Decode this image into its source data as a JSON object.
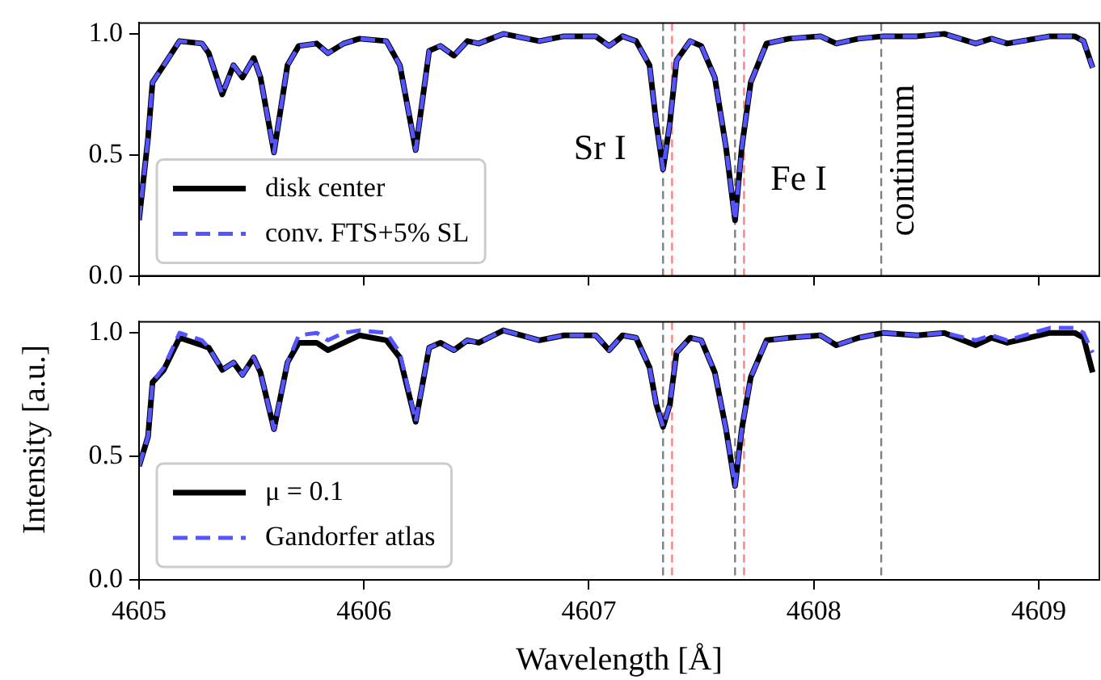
{
  "chart_data": [
    {
      "type": "line",
      "ylabel": "Intensity [a.u.]",
      "tick_labels": "y",
      "legend": "bottom left",
      "x": [
        4605.0,
        4605.04,
        4605.06,
        4605.11,
        4605.18,
        4605.28,
        4605.31,
        4605.37,
        4605.42,
        4605.46,
        4605.51,
        4605.54,
        4605.6,
        4605.66,
        4605.71,
        4605.79,
        4605.84,
        4605.91,
        4605.98,
        4606.1,
        4606.16,
        4606.23,
        4606.29,
        4606.34,
        4606.4,
        4606.46,
        4606.51,
        4606.62,
        4606.78,
        4606.89,
        4607.03,
        4607.09,
        4607.15,
        4607.21,
        4607.27,
        4607.3,
        4607.33,
        4607.36,
        4607.39,
        4607.45,
        4607.5,
        4607.56,
        4607.61,
        4607.65,
        4607.68,
        4607.72,
        4607.79,
        4607.89,
        4608.03,
        4608.1,
        4608.2,
        4608.31,
        4608.46,
        4608.58,
        4608.72,
        4608.79,
        4608.86,
        4609.05,
        4609.16,
        4609.2,
        4609.24
      ],
      "series": [
        {
          "name": "disk center",
          "color": "#000000",
          "line_style": "solid",
          "values": [
            0.23,
            0.57,
            0.8,
            0.87,
            0.97,
            0.96,
            0.92,
            0.75,
            0.87,
            0.82,
            0.9,
            0.82,
            0.51,
            0.87,
            0.95,
            0.96,
            0.92,
            0.96,
            0.98,
            0.97,
            0.87,
            0.52,
            0.93,
            0.95,
            0.91,
            0.97,
            0.96,
            1.0,
            0.97,
            0.99,
            0.99,
            0.95,
            0.99,
            0.97,
            0.87,
            0.63,
            0.44,
            0.63,
            0.89,
            0.97,
            0.95,
            0.82,
            0.53,
            0.23,
            0.53,
            0.8,
            0.96,
            0.98,
            0.99,
            0.96,
            0.98,
            0.99,
            0.99,
            1.0,
            0.96,
            0.98,
            0.96,
            0.99,
            0.99,
            0.97,
            0.86
          ]
        },
        {
          "name": "conv. FTS+5% SL",
          "color": "#5555ff",
          "line_style": "dashed",
          "values": [
            0.23,
            0.57,
            0.8,
            0.87,
            0.97,
            0.96,
            0.92,
            0.75,
            0.87,
            0.82,
            0.9,
            0.82,
            0.51,
            0.87,
            0.95,
            0.96,
            0.92,
            0.96,
            0.98,
            0.97,
            0.87,
            0.52,
            0.93,
            0.95,
            0.91,
            0.97,
            0.96,
            1.0,
            0.97,
            0.99,
            0.99,
            0.95,
            0.99,
            0.97,
            0.87,
            0.63,
            0.44,
            0.63,
            0.89,
            0.97,
            0.95,
            0.82,
            0.53,
            0.23,
            0.53,
            0.8,
            0.96,
            0.98,
            0.99,
            0.96,
            0.98,
            0.99,
            0.99,
            1.0,
            0.96,
            0.98,
            0.96,
            0.99,
            0.99,
            0.97,
            0.86
          ]
        }
      ],
      "xlim": [
        4605,
        4609.27
      ],
      "xticks": [
        4605,
        4606,
        4607,
        4608,
        4609
      ],
      "ylim": [
        0,
        1.045
      ],
      "yticks": [
        {
          "value": 0,
          "label": "0.0"
        },
        {
          "value": 0.5,
          "label": "0.5"
        },
        {
          "value": 1,
          "label": "1.0"
        }
      ],
      "ref_lines": [
        {
          "axis": "x",
          "value": 4607.33,
          "color": "#808080",
          "line_style": "dashed"
        },
        {
          "axis": "x",
          "value": 4607.37,
          "color": "#ff8080",
          "line_style": "dashed"
        },
        {
          "axis": "x",
          "value": 4607.65,
          "color": "#808080",
          "line_style": "dashed"
        },
        {
          "axis": "x",
          "value": 4607.69,
          "color": "#ff8080",
          "line_style": "dashed"
        },
        {
          "axis": "x",
          "value": 4608.3,
          "color": "#808080",
          "line_style": "dashed",
          "label": "continuum"
        }
      ],
      "annotations": [
        "Sr I",
        "Fe I"
      ]
    },
    {
      "type": "line",
      "xlabel": "Wavelength [Å]",
      "legend": "bottom left",
      "x": [
        4605.0,
        4605.04,
        4605.06,
        4605.11,
        4605.18,
        4605.28,
        4605.31,
        4605.37,
        4605.42,
        4605.46,
        4605.51,
        4605.54,
        4605.6,
        4605.66,
        4605.71,
        4605.79,
        4605.84,
        4605.91,
        4605.98,
        4606.1,
        4606.16,
        4606.23,
        4606.29,
        4606.34,
        4606.4,
        4606.46,
        4606.51,
        4606.62,
        4606.78,
        4606.89,
        4607.03,
        4607.09,
        4607.15,
        4607.21,
        4607.27,
        4607.3,
        4607.33,
        4607.36,
        4607.39,
        4607.45,
        4607.5,
        4607.56,
        4607.61,
        4607.65,
        4607.68,
        4607.72,
        4607.79,
        4607.89,
        4608.03,
        4608.1,
        4608.2,
        4608.31,
        4608.46,
        4608.58,
        4608.72,
        4608.79,
        4608.86,
        4609.05,
        4609.16,
        4609.2,
        4609.24
      ],
      "series": [
        {
          "name": "μ = 0.1",
          "color": "#000000",
          "line_style": "solid",
          "values": [
            0.46,
            0.58,
            0.8,
            0.85,
            0.98,
            0.95,
            0.94,
            0.85,
            0.88,
            0.83,
            0.9,
            0.84,
            0.61,
            0.88,
            0.96,
            0.96,
            0.93,
            0.96,
            0.99,
            0.97,
            0.9,
            0.64,
            0.94,
            0.96,
            0.93,
            0.97,
            0.96,
            1.01,
            0.97,
            0.99,
            0.99,
            0.93,
            0.99,
            0.98,
            0.86,
            0.71,
            0.62,
            0.71,
            0.92,
            0.98,
            0.97,
            0.84,
            0.61,
            0.38,
            0.61,
            0.82,
            0.97,
            0.98,
            0.99,
            0.95,
            0.98,
            1.0,
            0.99,
            1.0,
            0.95,
            0.98,
            0.96,
            1.0,
            1.0,
            0.98,
            0.84
          ]
        },
        {
          "name": "Gandorfer atlas",
          "color": "#5555ff",
          "line_style": "dashed",
          "values": [
            0.46,
            0.58,
            0.8,
            0.86,
            1.0,
            0.97,
            0.94,
            0.85,
            0.88,
            0.83,
            0.9,
            0.84,
            0.61,
            0.88,
            0.99,
            1.0,
            0.97,
            1.0,
            1.01,
            1.0,
            0.92,
            0.64,
            0.94,
            0.96,
            0.93,
            0.97,
            0.96,
            1.01,
            0.97,
            0.99,
            0.99,
            0.93,
            0.99,
            0.98,
            0.86,
            0.71,
            0.62,
            0.71,
            0.92,
            0.98,
            0.97,
            0.84,
            0.61,
            0.38,
            0.61,
            0.82,
            0.97,
            0.98,
            0.99,
            0.95,
            0.98,
            1.0,
            0.99,
            1.0,
            0.97,
            0.99,
            0.97,
            1.02,
            1.02,
            1.0,
            0.92
          ]
        }
      ],
      "xlim": [
        4605,
        4609.27
      ],
      "xticks": [
        4605,
        4606,
        4607,
        4608,
        4609
      ],
      "ylim": [
        0,
        1.045
      ],
      "yticks": [
        {
          "value": 0,
          "label": "0.0"
        },
        {
          "value": 0.5,
          "label": "0.5"
        },
        {
          "value": 1,
          "label": "1.0"
        }
      ],
      "ref_lines": [
        {
          "axis": "x",
          "value": 4607.33,
          "color": "#808080",
          "line_style": "dashed"
        },
        {
          "axis": "x",
          "value": 4607.37,
          "color": "#ff8080",
          "line_style": "dashed"
        },
        {
          "axis": "x",
          "value": 4607.65,
          "color": "#808080",
          "line_style": "dashed"
        },
        {
          "axis": "x",
          "value": 4607.69,
          "color": "#ff8080",
          "line_style": "dashed"
        },
        {
          "axis": "x",
          "value": 4608.3,
          "color": "#808080",
          "line_style": "dashed"
        }
      ]
    }
  ]
}
